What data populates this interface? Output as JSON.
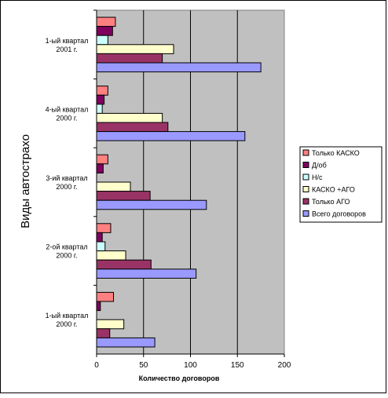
{
  "chart_data": {
    "type": "bar",
    "orientation": "horizontal",
    "ylabel": "Виды автострахо",
    "xlabel": "Количество договоров",
    "xlim": [
      0,
      200
    ],
    "xticks": [
      "0",
      "50",
      "100",
      "150",
      "200"
    ],
    "grid": true,
    "legend_position": "right",
    "plot_background": "#C0C0C0",
    "categories": [
      "1-ый квартал|2000 г.",
      "2-ой квартал|2000 г.",
      "3-ий квартал|2000 г.",
      "4-ый квартал|2000 г.",
      "1-ый квартал|2001 г."
    ],
    "series": [
      {
        "name": "Только КАСКО",
        "color": "#FF8080",
        "values": [
          18,
          15,
          12,
          12,
          20
        ]
      },
      {
        "name": "Д/об",
        "color": "#800060",
        "values": [
          4,
          6,
          7,
          8,
          17
        ]
      },
      {
        "name": "Н/с",
        "color": "#CCFFFF",
        "values": [
          0,
          9,
          0,
          6,
          12
        ]
      },
      {
        "name": "КАСКО +АГО",
        "color": "#FFFFCC",
        "values": [
          29,
          31,
          36,
          70,
          82
        ]
      },
      {
        "name": "Только АГО",
        "color": "#993366",
        "values": [
          14,
          58,
          57,
          76,
          70
        ]
      },
      {
        "name": "Всего договоров",
        "color": "#9999FF",
        "values": [
          62,
          106,
          117,
          158,
          175
        ]
      }
    ]
  }
}
